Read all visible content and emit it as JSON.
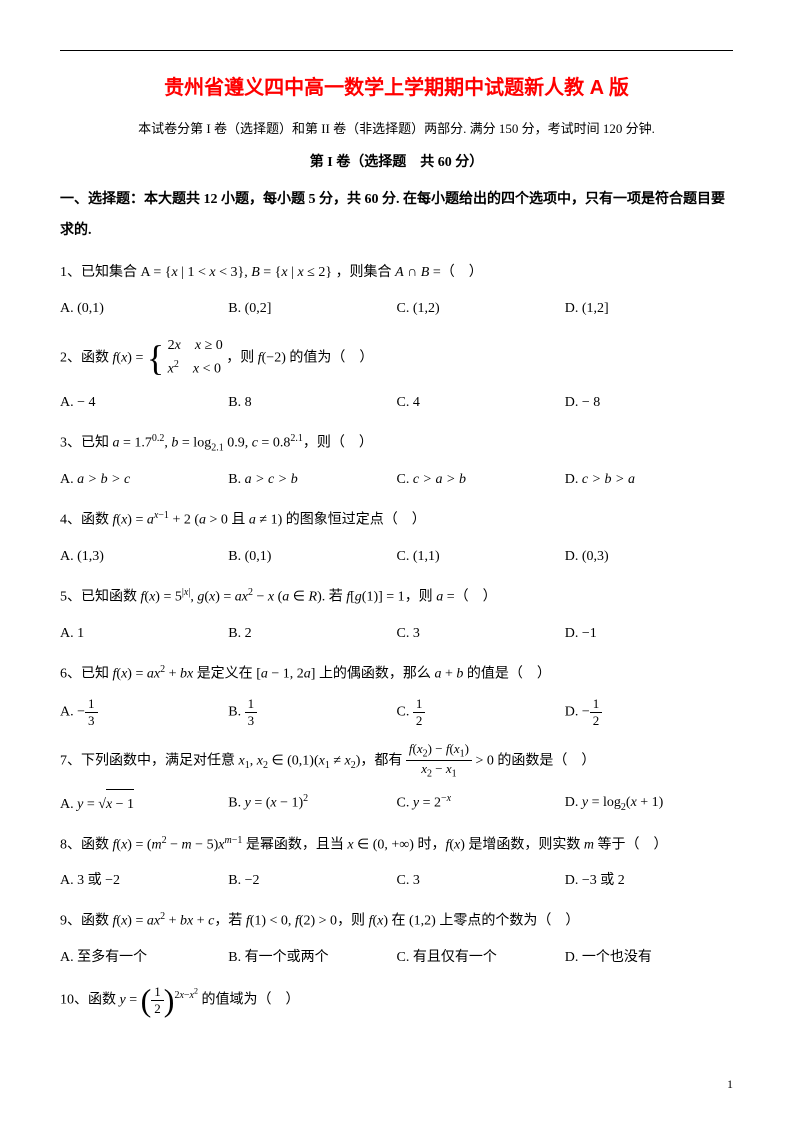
{
  "colors": {
    "title": "#ff0000",
    "text": "#000000",
    "background": "#ffffff"
  },
  "title": "贵州省遵义四中高一数学上学期期中试题新人教 A 版",
  "subtitle": "本试卷分第 I 卷（选择题）和第 II 卷（非选择题）两部分. 满分 150 分，考试时间 120 分钟.",
  "section_header": "第 I 卷（选择题　共 60 分）",
  "instructions": "一、选择题：本大题共 12 小题，每小题 5 分，共 60 分. 在每小题给出的四个选项中，只有一项是符合题目要求的.",
  "page_number": "1",
  "questions": {
    "q1": {
      "stem_prefix": "1、已知集合 ",
      "stem_math": "A = {x | 1 < x < 3}, B = {x | x ≤ 2}",
      "stem_suffix": "，则集合 A ∩ B =（　）",
      "opts": {
        "A": "(0,1)",
        "B": "(0,2]",
        "C": "(1,2)",
        "D": "(1,2]"
      }
    },
    "q2": {
      "stem_prefix": "2、函数 ",
      "stem_mid": "，则 f(−2) 的值为（　）",
      "opts": {
        "A": "− 4",
        "B": "8",
        "C": "4",
        "D": "− 8"
      }
    },
    "q3": {
      "stem": "3、已知 a = 1.7^0.2, b = log_2.1 0.9, c = 0.8^2.1，则（　）",
      "opts": {
        "A": "a > b > c",
        "B": "a > c > b",
        "C": "c > a > b",
        "D": "c > b > a"
      }
    },
    "q4": {
      "stem": "4、函数 f(x) = a^(x−1) + 2 (a > 0 且 a ≠ 1) 的图象恒过定点（　）",
      "opts": {
        "A": "(1,3)",
        "B": "(0,1)",
        "C": "(1,1)",
        "D": "(0,3)"
      }
    },
    "q5": {
      "stem": "5、已知函数 f(x) = 5^|x|, g(x) = ax² − x (a ∈ R). 若 f[g(1)] = 1，则 a =（　）",
      "opts": {
        "A": "1",
        "B": "2",
        "C": "3",
        "D": "−1"
      }
    },
    "q6": {
      "stem": "6、已知 f(x) = ax² + bx 是定义在 [a − 1, 2a] 上的偶函数，那么 a + b 的值是（　）",
      "opts": {
        "A": "−1/3",
        "B": "1/3",
        "C": "1/2",
        "D": "−1/2"
      }
    },
    "q7": {
      "stem_prefix": "7、下列函数中，满足对任意 x₁, x₂ ∈ (0,1)(x₁ ≠ x₂)，都有 ",
      "stem_suffix": " > 0 的函数是（　）",
      "opts": {
        "A": "y = √(x−1)",
        "B": "y = (x−1)²",
        "C": "y = 2^(−x)",
        "D": "y = log₂(x+1)"
      }
    },
    "q8": {
      "stem": "8、函数 f(x) = (m² − m − 5)x^(m−1) 是幂函数，且当 x ∈ (0, +∞) 时，f(x) 是增函数，则实数 m 等于（　）",
      "opts": {
        "A": "3 或 −2",
        "B": "−2",
        "C": "3",
        "D": "−3 或 2"
      }
    },
    "q9": {
      "stem": "9、函数 f(x) = ax² + bx + c，若 f(1) < 0, f(2) > 0，则 f(x) 在 (1,2) 上零点的个数为（　）",
      "opts": {
        "A": "至多有一个",
        "B": "有一个或两个",
        "C": "有且仅有一个",
        "D": "一个也没有"
      }
    },
    "q10": {
      "stem_prefix": "10、函数 ",
      "stem_suffix": " 的值域为（　）"
    }
  }
}
